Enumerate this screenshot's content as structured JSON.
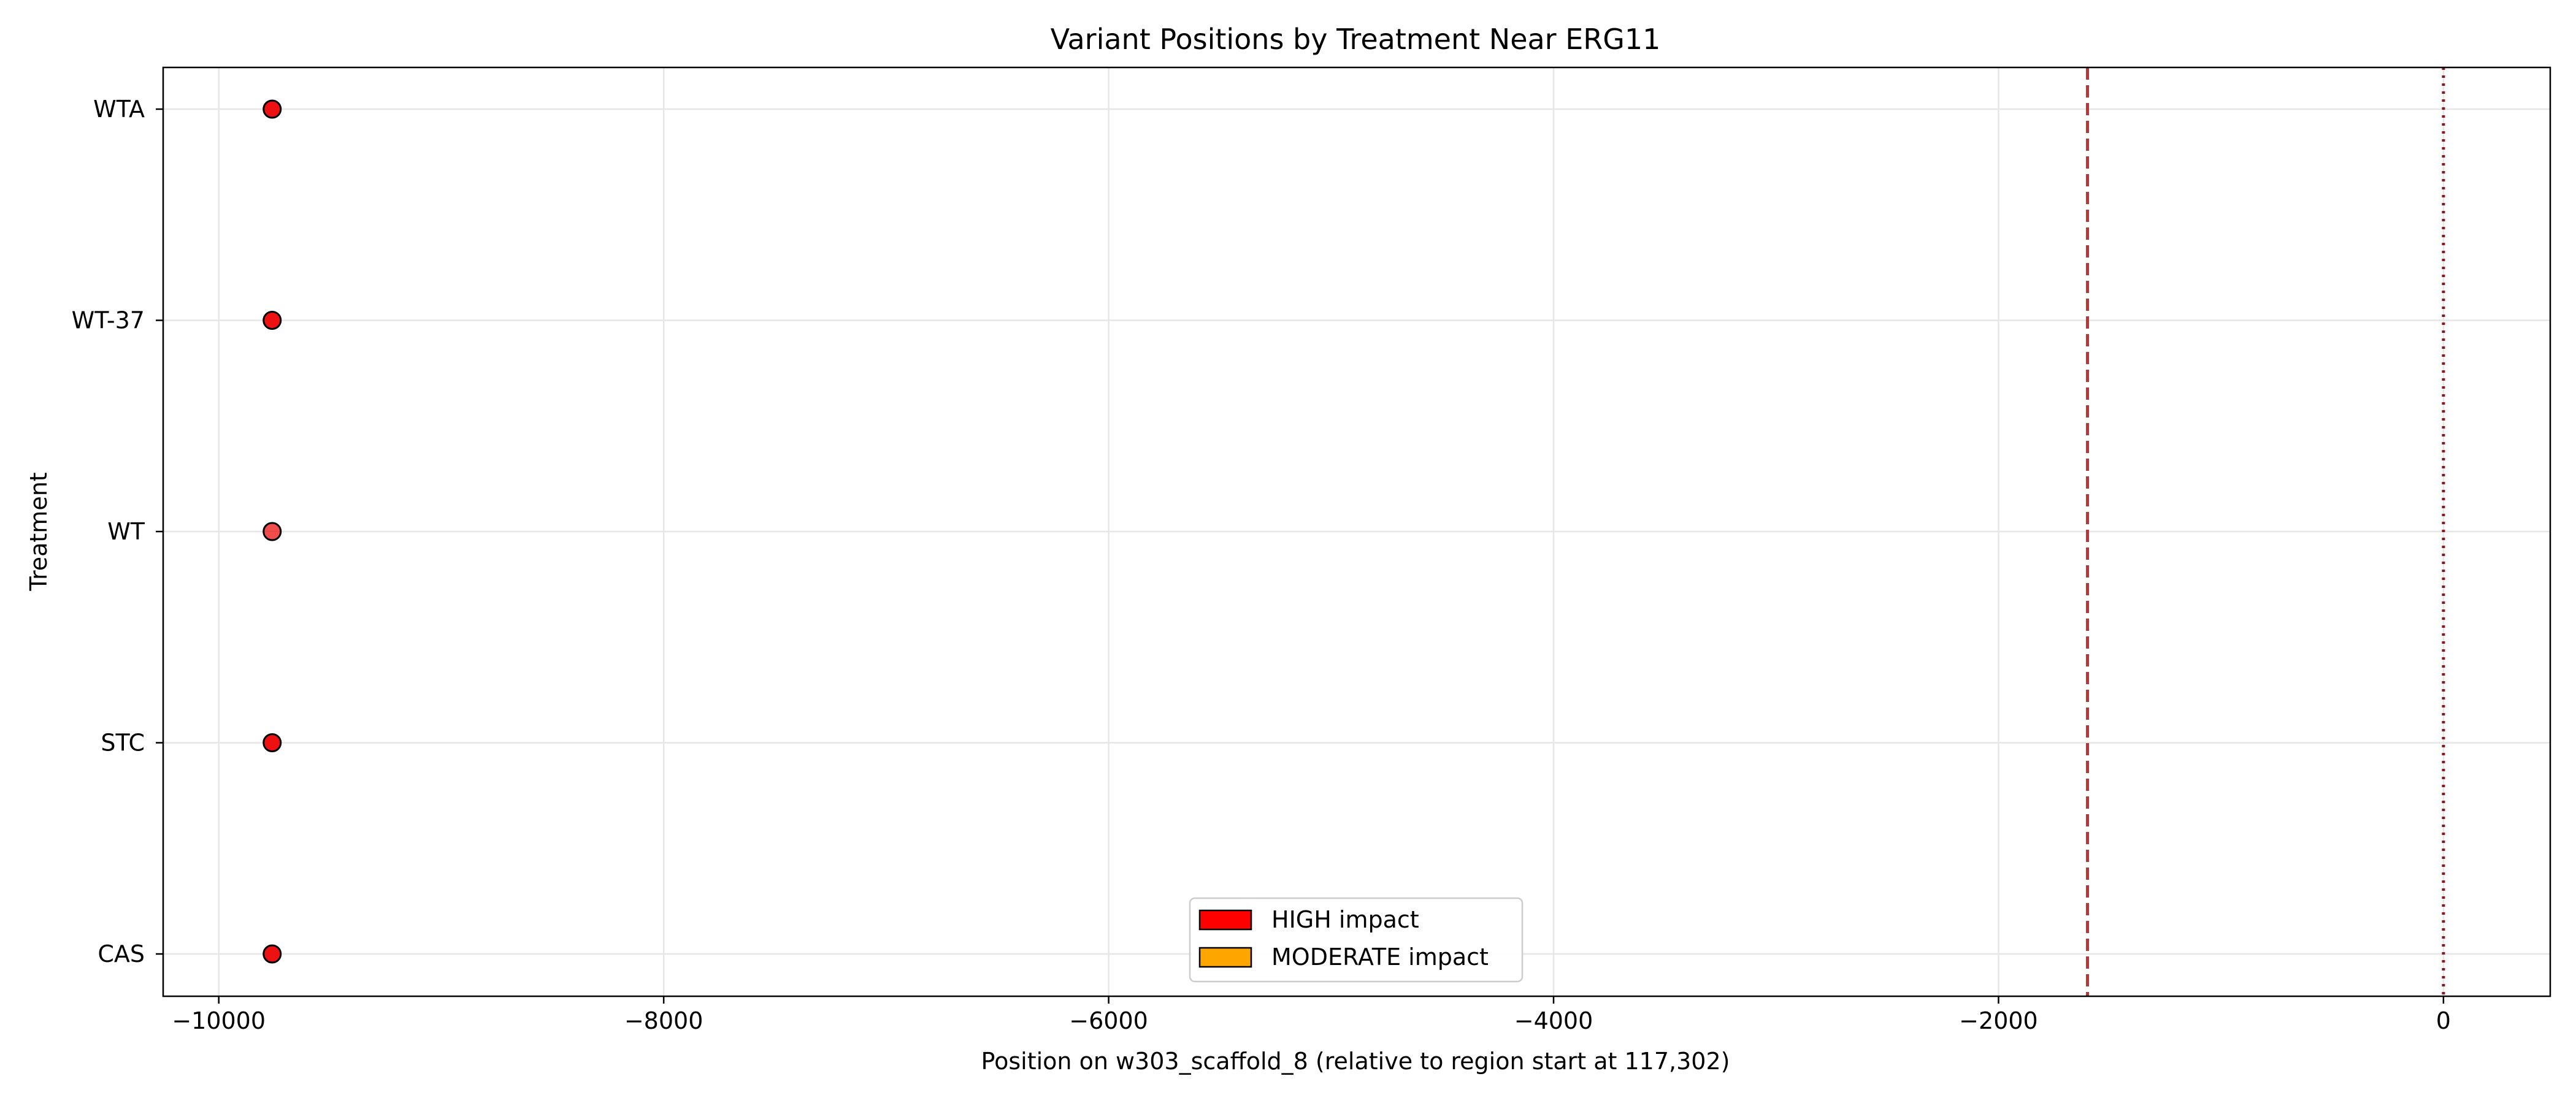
{
  "chart_data": {
    "type": "scatter",
    "title": "Variant Positions by Treatment Near ERG11",
    "xlabel": "Position on w303_scaffold_8 (relative to region start at 117,302)",
    "ylabel": "Treatment",
    "xlim": [
      -10250,
      480
    ],
    "x_ticks": [
      -10000,
      -8000,
      -6000,
      -4000,
      -2000,
      0
    ],
    "x_tick_labels": [
      "−10000",
      "−8000",
      "−6000",
      "−4000",
      "−2000",
      "0"
    ],
    "categories": [
      "CAS",
      "STC",
      "WT",
      "WT-37",
      "WTA"
    ],
    "grid": true,
    "legend_position": "bottom-center",
    "legend": [
      {
        "label": "HIGH impact",
        "color": "#ff0000"
      },
      {
        "label": "MODERATE impact",
        "color": "#ffa500"
      }
    ],
    "points": [
      {
        "category": "WTA",
        "x": -9760,
        "impact": "HIGH",
        "color": "#ee1111",
        "opacity": 1.0
      },
      {
        "category": "WT-37",
        "x": -9760,
        "impact": "HIGH",
        "color": "#ee1111",
        "opacity": 1.0
      },
      {
        "category": "WT",
        "x": -9760,
        "impact": "HIGH",
        "color": "#ee1111",
        "opacity": 0.75
      },
      {
        "category": "STC",
        "x": -9760,
        "impact": "HIGH",
        "color": "#ee1111",
        "opacity": 1.0
      },
      {
        "category": "CAS",
        "x": -9760,
        "impact": "HIGH",
        "color": "#ee1111",
        "opacity": 1.0
      }
    ],
    "reference_lines": [
      {
        "x": -1600,
        "style": "dashed",
        "color": "#b03a3a"
      },
      {
        "x": 0,
        "style": "dotted",
        "color": "#8b1a1a"
      }
    ]
  }
}
